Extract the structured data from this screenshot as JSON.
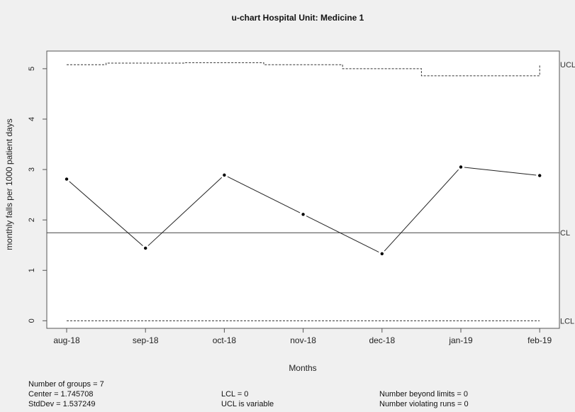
{
  "chart_data": {
    "type": "line",
    "title": "u-chart Hospital Unit: Medicine 1",
    "xlabel": "Months",
    "ylabel": "monthly falls per 1000 patient days",
    "categories": [
      "aug-18",
      "sep-18",
      "oct-18",
      "nov-18",
      "dec-18",
      "jan-19",
      "feb-19"
    ],
    "series": [
      {
        "values": [
          2.81,
          1.44,
          2.89,
          2.11,
          1.33,
          3.05,
          2.88
        ]
      }
    ],
    "ucl": [
      5.08,
      5.11,
      5.12,
      5.08,
      5.0,
      4.86,
      4.86
    ],
    "ucl_end": 5.08,
    "center_line": 1.745708,
    "lcl": 0,
    "ylim": [
      -0.15,
      5.35
    ],
    "yticks": [
      "0",
      "1",
      "2",
      "3",
      "4",
      "5"
    ],
    "limit_labels": {
      "ucl": "UCL",
      "cl": "CL",
      "lcl": "LCL"
    },
    "grid": false
  },
  "stats": {
    "groups": "Number of groups = 7",
    "center": "Center = 1.745708",
    "stddev": "StdDev = 1.537249",
    "lcl": "LCL = 0",
    "ucl": "UCL is variable",
    "beyond": "Number beyond limits = 0",
    "runs": "Number violating runs = 0"
  }
}
